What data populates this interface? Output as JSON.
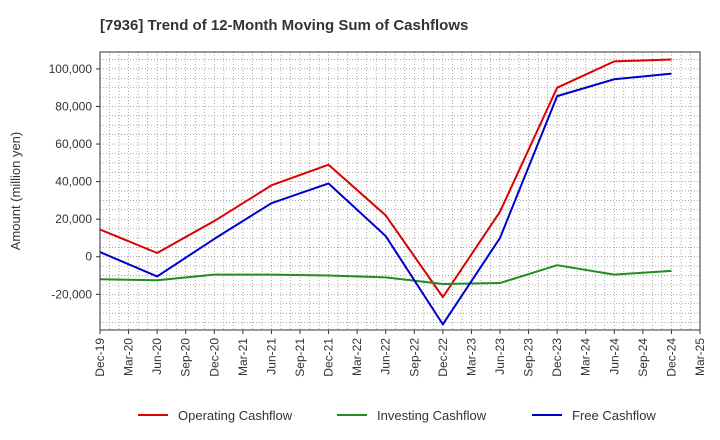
{
  "chart_data": {
    "type": "line",
    "title": "[7936]  Trend of 12-Month Moving Sum of Cashflows",
    "xlabel": "",
    "ylabel": "Amount (million yen)",
    "categories": [
      "Dec-19",
      "Mar-20",
      "Jun-20",
      "Sep-20",
      "Dec-20",
      "Mar-21",
      "Jun-21",
      "Sep-21",
      "Dec-21",
      "Mar-22",
      "Jun-22",
      "Sep-22",
      "Dec-22",
      "Mar-23",
      "Jun-23",
      "Sep-23",
      "Dec-23",
      "Mar-24",
      "Jun-24",
      "Sep-24",
      "Dec-24",
      "Mar-25"
    ],
    "ylim": [
      -39000,
      109000
    ],
    "yticks": [
      -20000,
      0,
      20000,
      40000,
      60000,
      80000,
      100000
    ],
    "ytick_labels": [
      "-20,000",
      "0",
      "20,000",
      "40,000",
      "60,000",
      "80,000",
      "100,000"
    ],
    "grid": true,
    "legend_position": "bottom",
    "series": [
      {
        "name": "Operating Cashflow",
        "color": "#dd0000",
        "x": [
          "Dec-19",
          "Jun-20",
          "Dec-20",
          "Jun-21",
          "Dec-21",
          "Jun-22",
          "Dec-22",
          "Jun-23",
          "Dec-23",
          "Jun-24",
          "Dec-24"
        ],
        "values": [
          14500,
          2000,
          19000,
          38000,
          49000,
          22000,
          -21500,
          24000,
          90000,
          104000,
          105000
        ]
      },
      {
        "name": "Investing Cashflow",
        "color": "#228b22",
        "x": [
          "Dec-19",
          "Jun-20",
          "Dec-20",
          "Jun-21",
          "Dec-21",
          "Jun-22",
          "Dec-22",
          "Jun-23",
          "Dec-23",
          "Jun-24",
          "Dec-24"
        ],
        "values": [
          -12000,
          -12500,
          -9500,
          -9500,
          -10000,
          -11000,
          -14500,
          -14000,
          -4500,
          -9500,
          -7500
        ]
      },
      {
        "name": "Free Cashflow",
        "color": "#0000cc",
        "x": [
          "Dec-19",
          "Jun-20",
          "Dec-20",
          "Jun-21",
          "Dec-21",
          "Jun-22",
          "Dec-22",
          "Jun-23",
          "Dec-23",
          "Jun-24",
          "Dec-24"
        ],
        "values": [
          2500,
          -10500,
          9500,
          28500,
          39000,
          11000,
          -36000,
          10000,
          85500,
          94500,
          97500
        ]
      }
    ]
  }
}
